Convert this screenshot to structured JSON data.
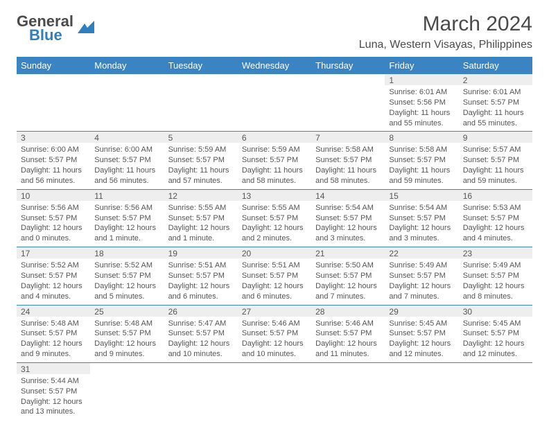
{
  "brand": {
    "part1": "General",
    "part2": "Blue",
    "text_color": "#4a4a4a",
    "accent_color": "#2f7fbf"
  },
  "header": {
    "title": "March 2024",
    "location": "Luna, Western Visayas, Philippines"
  },
  "colors": {
    "header_bg": "#3b84c4",
    "header_text": "#ffffff",
    "daynum_bg": "#eeeeee",
    "text": "#555555",
    "rule": "#3b84c4"
  },
  "weekdays": [
    "Sunday",
    "Monday",
    "Tuesday",
    "Wednesday",
    "Thursday",
    "Friday",
    "Saturday"
  ],
  "weeks": [
    [
      {
        "n": "",
        "sr": "",
        "ss": "",
        "dl": ""
      },
      {
        "n": "",
        "sr": "",
        "ss": "",
        "dl": ""
      },
      {
        "n": "",
        "sr": "",
        "ss": "",
        "dl": ""
      },
      {
        "n": "",
        "sr": "",
        "ss": "",
        "dl": ""
      },
      {
        "n": "",
        "sr": "",
        "ss": "",
        "dl": ""
      },
      {
        "n": "1",
        "sr": "Sunrise: 6:01 AM",
        "ss": "Sunset: 5:56 PM",
        "dl": "Daylight: 11 hours and 55 minutes."
      },
      {
        "n": "2",
        "sr": "Sunrise: 6:01 AM",
        "ss": "Sunset: 5:57 PM",
        "dl": "Daylight: 11 hours and 55 minutes."
      }
    ],
    [
      {
        "n": "3",
        "sr": "Sunrise: 6:00 AM",
        "ss": "Sunset: 5:57 PM",
        "dl": "Daylight: 11 hours and 56 minutes."
      },
      {
        "n": "4",
        "sr": "Sunrise: 6:00 AM",
        "ss": "Sunset: 5:57 PM",
        "dl": "Daylight: 11 hours and 56 minutes."
      },
      {
        "n": "5",
        "sr": "Sunrise: 5:59 AM",
        "ss": "Sunset: 5:57 PM",
        "dl": "Daylight: 11 hours and 57 minutes."
      },
      {
        "n": "6",
        "sr": "Sunrise: 5:59 AM",
        "ss": "Sunset: 5:57 PM",
        "dl": "Daylight: 11 hours and 58 minutes."
      },
      {
        "n": "7",
        "sr": "Sunrise: 5:58 AM",
        "ss": "Sunset: 5:57 PM",
        "dl": "Daylight: 11 hours and 58 minutes."
      },
      {
        "n": "8",
        "sr": "Sunrise: 5:58 AM",
        "ss": "Sunset: 5:57 PM",
        "dl": "Daylight: 11 hours and 59 minutes."
      },
      {
        "n": "9",
        "sr": "Sunrise: 5:57 AM",
        "ss": "Sunset: 5:57 PM",
        "dl": "Daylight: 11 hours and 59 minutes."
      }
    ],
    [
      {
        "n": "10",
        "sr": "Sunrise: 5:56 AM",
        "ss": "Sunset: 5:57 PM",
        "dl": "Daylight: 12 hours and 0 minutes."
      },
      {
        "n": "11",
        "sr": "Sunrise: 5:56 AM",
        "ss": "Sunset: 5:57 PM",
        "dl": "Daylight: 12 hours and 1 minute."
      },
      {
        "n": "12",
        "sr": "Sunrise: 5:55 AM",
        "ss": "Sunset: 5:57 PM",
        "dl": "Daylight: 12 hours and 1 minute."
      },
      {
        "n": "13",
        "sr": "Sunrise: 5:55 AM",
        "ss": "Sunset: 5:57 PM",
        "dl": "Daylight: 12 hours and 2 minutes."
      },
      {
        "n": "14",
        "sr": "Sunrise: 5:54 AM",
        "ss": "Sunset: 5:57 PM",
        "dl": "Daylight: 12 hours and 3 minutes."
      },
      {
        "n": "15",
        "sr": "Sunrise: 5:54 AM",
        "ss": "Sunset: 5:57 PM",
        "dl": "Daylight: 12 hours and 3 minutes."
      },
      {
        "n": "16",
        "sr": "Sunrise: 5:53 AM",
        "ss": "Sunset: 5:57 PM",
        "dl": "Daylight: 12 hours and 4 minutes."
      }
    ],
    [
      {
        "n": "17",
        "sr": "Sunrise: 5:52 AM",
        "ss": "Sunset: 5:57 PM",
        "dl": "Daylight: 12 hours and 4 minutes."
      },
      {
        "n": "18",
        "sr": "Sunrise: 5:52 AM",
        "ss": "Sunset: 5:57 PM",
        "dl": "Daylight: 12 hours and 5 minutes."
      },
      {
        "n": "19",
        "sr": "Sunrise: 5:51 AM",
        "ss": "Sunset: 5:57 PM",
        "dl": "Daylight: 12 hours and 6 minutes."
      },
      {
        "n": "20",
        "sr": "Sunrise: 5:51 AM",
        "ss": "Sunset: 5:57 PM",
        "dl": "Daylight: 12 hours and 6 minutes."
      },
      {
        "n": "21",
        "sr": "Sunrise: 5:50 AM",
        "ss": "Sunset: 5:57 PM",
        "dl": "Daylight: 12 hours and 7 minutes."
      },
      {
        "n": "22",
        "sr": "Sunrise: 5:49 AM",
        "ss": "Sunset: 5:57 PM",
        "dl": "Daylight: 12 hours and 7 minutes."
      },
      {
        "n": "23",
        "sr": "Sunrise: 5:49 AM",
        "ss": "Sunset: 5:57 PM",
        "dl": "Daylight: 12 hours and 8 minutes."
      }
    ],
    [
      {
        "n": "24",
        "sr": "Sunrise: 5:48 AM",
        "ss": "Sunset: 5:57 PM",
        "dl": "Daylight: 12 hours and 9 minutes."
      },
      {
        "n": "25",
        "sr": "Sunrise: 5:48 AM",
        "ss": "Sunset: 5:57 PM",
        "dl": "Daylight: 12 hours and 9 minutes."
      },
      {
        "n": "26",
        "sr": "Sunrise: 5:47 AM",
        "ss": "Sunset: 5:57 PM",
        "dl": "Daylight: 12 hours and 10 minutes."
      },
      {
        "n": "27",
        "sr": "Sunrise: 5:46 AM",
        "ss": "Sunset: 5:57 PM",
        "dl": "Daylight: 12 hours and 10 minutes."
      },
      {
        "n": "28",
        "sr": "Sunrise: 5:46 AM",
        "ss": "Sunset: 5:57 PM",
        "dl": "Daylight: 12 hours and 11 minutes."
      },
      {
        "n": "29",
        "sr": "Sunrise: 5:45 AM",
        "ss": "Sunset: 5:57 PM",
        "dl": "Daylight: 12 hours and 12 minutes."
      },
      {
        "n": "30",
        "sr": "Sunrise: 5:45 AM",
        "ss": "Sunset: 5:57 PM",
        "dl": "Daylight: 12 hours and 12 minutes."
      }
    ],
    [
      {
        "n": "31",
        "sr": "Sunrise: 5:44 AM",
        "ss": "Sunset: 5:57 PM",
        "dl": "Daylight: 12 hours and 13 minutes."
      },
      {
        "n": "",
        "sr": "",
        "ss": "",
        "dl": ""
      },
      {
        "n": "",
        "sr": "",
        "ss": "",
        "dl": ""
      },
      {
        "n": "",
        "sr": "",
        "ss": "",
        "dl": ""
      },
      {
        "n": "",
        "sr": "",
        "ss": "",
        "dl": ""
      },
      {
        "n": "",
        "sr": "",
        "ss": "",
        "dl": ""
      },
      {
        "n": "",
        "sr": "",
        "ss": "",
        "dl": ""
      }
    ]
  ]
}
